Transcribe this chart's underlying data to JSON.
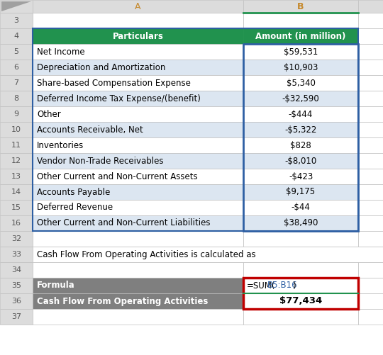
{
  "col_a_header": "Particulars",
  "col_b_header": "Amount (in million)",
  "header_bg": "#21924E",
  "header_fg": "#FFFFFF",
  "rows": [
    {
      "row": 5,
      "label": "Net Income",
      "value": "$59,531"
    },
    {
      "row": 6,
      "label": "Depreciation and Amortization",
      "value": "$10,903"
    },
    {
      "row": 7,
      "label": "Share-based Compensation Expense",
      "value": "$5,340"
    },
    {
      "row": 8,
      "label": "Deferred Income Tax Expense/(benefit)",
      "value": "-$32,590"
    },
    {
      "row": 9,
      "label": "Other",
      "value": "-$444"
    },
    {
      "row": 10,
      "label": "Accounts Receivable, Net",
      "value": "-$5,322"
    },
    {
      "row": 11,
      "label": "Inventories",
      "value": "$828"
    },
    {
      "row": 12,
      "label": "Vendor Non-Trade Receivables",
      "value": "-$8,010"
    },
    {
      "row": 13,
      "label": "Other Current and Non-Current Assets",
      "value": "-$423"
    },
    {
      "row": 14,
      "label": "Accounts Payable",
      "value": "$9,175"
    },
    {
      "row": 15,
      "label": "Deferred Revenue",
      "value": "-$44"
    },
    {
      "row": 16,
      "label": "Other Current and Non-Current Liabilities",
      "value": "$38,490"
    }
  ],
  "note_text": "Cash Flow From Operating Activities is calculated as",
  "formula_label": "Formula",
  "result_label": "Cash Flow From Operating Activities",
  "result_value": "$77,434",
  "formula_bg": "#7F7F7F",
  "formula_fg": "#FFFFFF",
  "row_bg_light": "#DCE6F1",
  "row_bg_white": "#FFFFFF",
  "grid_color": "#C0C0C0",
  "row_num_bg": "#DCDCDC",
  "col_hdr_bg": "#DCDCDC",
  "col_hdr_a_fg": "#C5882A",
  "col_hdr_b_fg": "#C5882A",
  "blue_border": "#2E5FA3",
  "red_border": "#C00000",
  "green_line": "#21924E",
  "font_size": 8.5,
  "hdr_font_size": 8.5
}
